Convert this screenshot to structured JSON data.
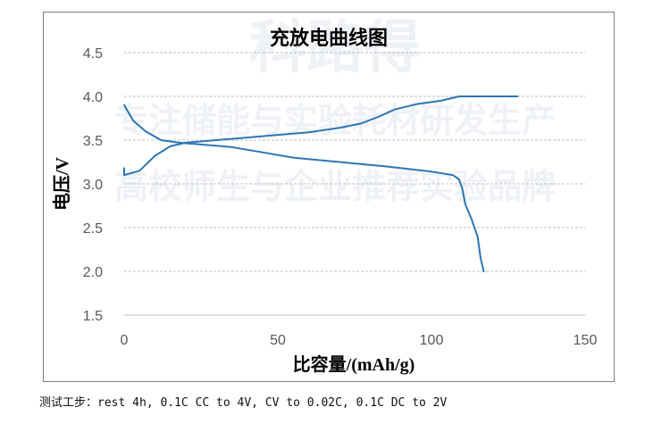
{
  "caption": "测试工步：rest 4h, 0.1C CC to 4V, CV to 0.02C, 0.1C DC to 2V",
  "watermark": {
    "lines": [
      "科路得",
      "专注储能与实验耗材研发生产",
      "高校师生与企业推荐实验品牌"
    ],
    "color": "#eef1f6"
  },
  "chart_data": {
    "type": "line",
    "title": "充放电曲线图",
    "xlabel": "比容量/(mAh/g)",
    "ylabel": "电压/V",
    "xlim": [
      0,
      150
    ],
    "ylim": [
      1.5,
      4.5
    ],
    "x_ticks": [
      "0",
      "50",
      "100",
      "150"
    ],
    "y_ticks": [
      "1.5",
      "2.0",
      "2.5",
      "3.0",
      "3.5",
      "4.0",
      "4.5"
    ],
    "grid": "horizontal dashed",
    "legend": "none",
    "line_color": "#2e75b6",
    "series": [
      {
        "points": [
          [
            0,
            3.18
          ],
          [
            0,
            3.1
          ],
          [
            5,
            3.15
          ],
          [
            10,
            3.32
          ],
          [
            15,
            3.43
          ],
          [
            20,
            3.47
          ],
          [
            30,
            3.5
          ],
          [
            40,
            3.53
          ],
          [
            50,
            3.56
          ],
          [
            60,
            3.59
          ],
          [
            70,
            3.64
          ],
          [
            77,
            3.69
          ],
          [
            83,
            3.77
          ],
          [
            88,
            3.85
          ],
          [
            95,
            3.91
          ],
          [
            103,
            3.95
          ],
          [
            109,
            4.0
          ],
          [
            111,
            4.0
          ],
          [
            120,
            4.0
          ],
          [
            128,
            4.0
          ]
        ]
      },
      {
        "points": [
          [
            0,
            3.9
          ],
          [
            3,
            3.72
          ],
          [
            7,
            3.6
          ],
          [
            12,
            3.5
          ],
          [
            18,
            3.47
          ],
          [
            25,
            3.45
          ],
          [
            35,
            3.42
          ],
          [
            45,
            3.36
          ],
          [
            55,
            3.3
          ],
          [
            70,
            3.25
          ],
          [
            85,
            3.2
          ],
          [
            100,
            3.14
          ],
          [
            107,
            3.1
          ],
          [
            109,
            3.05
          ],
          [
            110,
            2.95
          ],
          [
            111,
            2.77
          ],
          [
            113,
            2.6
          ],
          [
            115,
            2.4
          ],
          [
            116,
            2.15
          ],
          [
            117,
            2.0
          ]
        ]
      }
    ]
  }
}
